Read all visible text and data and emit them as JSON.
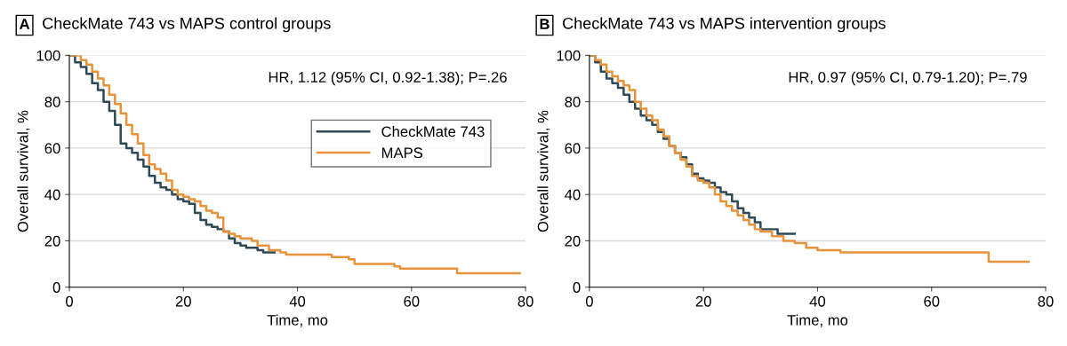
{
  "chart_data": [
    {
      "type": "step",
      "title": "A CheckMate 743 vs MAPS control groups",
      "xlabel": "Time, mo",
      "ylabel": "Overall survival, %",
      "annotations": [
        "HR, 1.12 (95% CI, 0.92-1.38); P=.26"
      ],
      "xlim": [
        0,
        80
      ],
      "ylim": [
        0,
        100
      ],
      "xticks": [
        0,
        20,
        40,
        60,
        80
      ],
      "yticks": [
        0,
        20,
        40,
        60,
        80,
        100
      ],
      "grid": "y",
      "legend": "right",
      "series": [
        {
          "name": "CheckMate 743",
          "color": "#2e4a56",
          "x": [
            0,
            1,
            2,
            3,
            4,
            5,
            6,
            7,
            8,
            9,
            10,
            11,
            12,
            13,
            14,
            15,
            16,
            17,
            18,
            19,
            20,
            21,
            22,
            23,
            24,
            25,
            26,
            27,
            28,
            29,
            30,
            31,
            33,
            34,
            36
          ],
          "values": [
            100,
            97,
            95,
            92,
            88,
            85,
            80,
            76,
            70,
            62,
            60,
            58,
            55,
            52,
            48,
            45,
            43,
            42,
            40,
            38,
            37,
            36,
            32,
            29,
            27,
            26,
            25,
            24,
            21,
            19,
            18,
            17,
            16,
            15,
            15
          ]
        },
        {
          "name": "MAPS",
          "color": "#e8923a",
          "x": [
            0,
            2,
            3,
            4,
            5,
            6,
            7,
            8,
            9,
            10,
            11,
            12,
            13,
            14,
            15,
            16,
            17,
            18,
            19,
            20,
            21,
            22,
            23,
            24,
            25,
            26,
            27,
            28,
            29,
            30,
            32,
            33,
            35,
            37,
            38,
            46,
            49,
            50,
            55,
            57,
            58,
            68,
            79
          ],
          "values": [
            100,
            98,
            96,
            93,
            90,
            87,
            83,
            79,
            75,
            70,
            66,
            62,
            57,
            53,
            51,
            49,
            46,
            42,
            40,
            39,
            38,
            37,
            35,
            33,
            32,
            30,
            24,
            23,
            22,
            21,
            20,
            18,
            16,
            15,
            14,
            13,
            12,
            10,
            10,
            9,
            8,
            6,
            6
          ]
        }
      ]
    },
    {
      "type": "step",
      "title": "B CheckMate 743 vs MAPS intervention groups",
      "xlabel": "Time, mo",
      "ylabel": "Overall survival, %",
      "annotations": [
        "HR, 0.97 (95% CI, 0.79-1.20); P=.79"
      ],
      "xlim": [
        0,
        80
      ],
      "ylim": [
        0,
        100
      ],
      "xticks": [
        0,
        20,
        40,
        60,
        80
      ],
      "yticks": [
        0,
        20,
        40,
        60,
        80,
        100
      ],
      "grid": "y",
      "series": [
        {
          "color": "#2e4a56",
          "x": [
            0,
            1,
            2,
            3,
            4,
            5,
            6,
            7,
            8,
            9,
            10,
            11,
            12,
            13,
            14,
            15,
            16,
            17,
            18,
            19,
            20,
            21,
            22,
            23,
            24,
            25,
            26,
            27,
            28,
            29,
            30,
            33,
            36
          ],
          "values": [
            100,
            97,
            93,
            90,
            88,
            86,
            83,
            80,
            77,
            74,
            72,
            70,
            67,
            64,
            61,
            58,
            56,
            53,
            49,
            47,
            46,
            45,
            43,
            41,
            40,
            37,
            34,
            32,
            30,
            28,
            25,
            23,
            23
          ]
        },
        {
          "color": "#e8923a",
          "x": [
            0,
            1,
            2,
            3,
            4,
            5,
            6,
            7,
            8,
            9,
            10,
            11,
            12,
            13,
            14,
            15,
            16,
            17,
            18,
            19,
            20,
            21,
            22,
            23,
            24,
            25,
            26,
            27,
            28,
            29,
            30,
            32,
            34,
            36,
            38,
            40,
            44,
            69,
            70,
            77
          ],
          "values": [
            100,
            98,
            96,
            93,
            91,
            89,
            87,
            85,
            80,
            77,
            74,
            72,
            68,
            65,
            61,
            58,
            55,
            52,
            48,
            46,
            45,
            43,
            40,
            37,
            35,
            33,
            31,
            29,
            27,
            25,
            24,
            22,
            20,
            19,
            17,
            16,
            15,
            15,
            11,
            11
          ]
        }
      ]
    }
  ]
}
